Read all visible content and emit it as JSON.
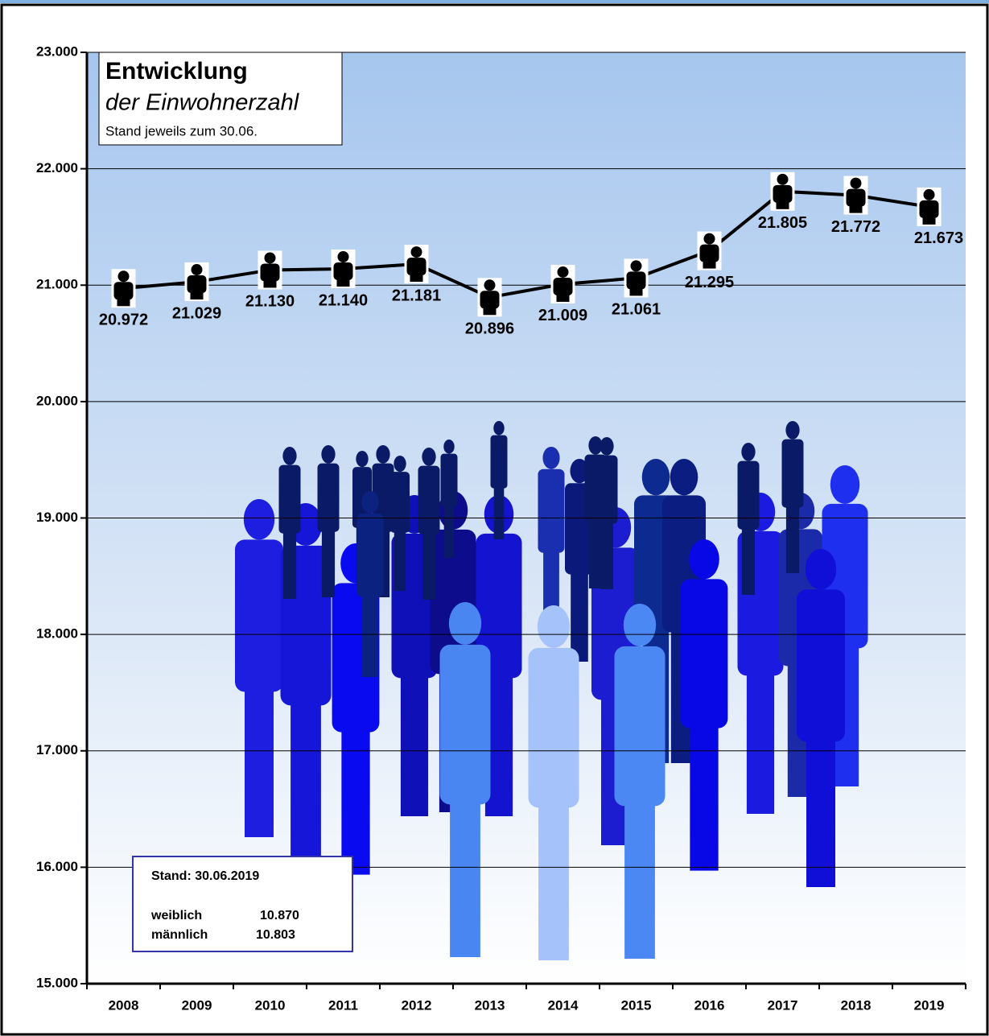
{
  "chart_data": {
    "type": "line",
    "title": "Entwicklung",
    "subtitle": "der Einwohnerzahl",
    "note": "Stand jeweils zum 30.06.",
    "categories": [
      "2008",
      "2009",
      "2010",
      "2011",
      "2012",
      "2013",
      "2014",
      "2015",
      "2016",
      "2017",
      "2018",
      "2019"
    ],
    "values": [
      20972,
      21029,
      21130,
      21140,
      21181,
      20896,
      21009,
      21061,
      21295,
      21805,
      21772,
      21673
    ],
    "value_labels": [
      "20.972",
      "21.029",
      "21.130",
      "21.140",
      "21.181",
      "20.896",
      "21.009",
      "21.061",
      "21.295",
      "21.805",
      "21.772",
      "21.673"
    ],
    "color": "#000000",
    "ylim": [
      15000,
      23000
    ],
    "yticks": [
      {
        "value": 15000,
        "label": "15.000"
      },
      {
        "value": 16000,
        "label": "16.000"
      },
      {
        "value": 17000,
        "label": "17.000"
      },
      {
        "value": 18000,
        "label": "18.000"
      },
      {
        "value": 19000,
        "label": "19.000"
      },
      {
        "value": 20000,
        "label": "20.000"
      },
      {
        "value": 21000,
        "label": "21.000"
      },
      {
        "value": 22000,
        "label": "22.000"
      },
      {
        "value": 23000,
        "label": "23.000"
      }
    ],
    "grid": true,
    "info_box": {
      "heading": "Stand: 30.06.2019",
      "rows": [
        [
          "weiblich",
          "10.870"
        ],
        [
          "männlich",
          "10.803"
        ]
      ]
    }
  }
}
